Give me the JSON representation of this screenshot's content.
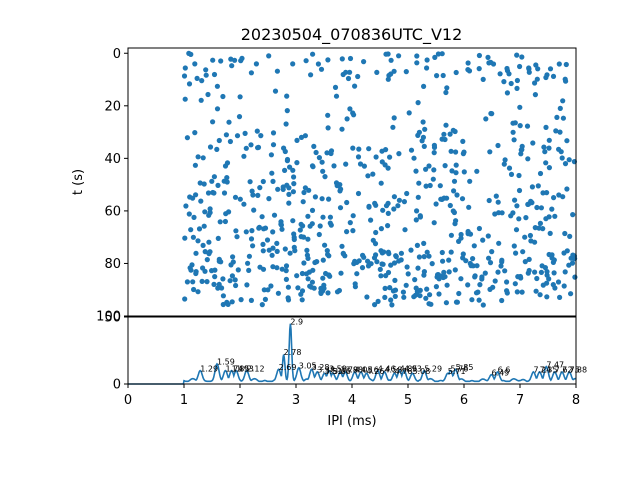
{
  "chart_data": [
    {
      "type": "scatter",
      "title": "20230504_070836UTC_V12",
      "ylabel": "t (s)",
      "xlim": [
        0,
        8
      ],
      "ylim": [
        100,
        -2
      ],
      "y_inverted": true,
      "yticks": [
        "0",
        "20",
        "40",
        "60",
        "80",
        "100"
      ],
      "point_color": "#1f77b4",
      "grid": false
    },
    {
      "type": "line",
      "xlabel": "IPI (ms)",
      "xlim": [
        0,
        8
      ],
      "ylim": [
        0,
        50
      ],
      "xticks": [
        "0",
        "1",
        "2",
        "3",
        "4",
        "5",
        "6",
        "7",
        "8"
      ],
      "yticks": [
        "0",
        "50"
      ],
      "line_color": "#1f77b4",
      "grid": false,
      "peaks": [
        {
          "x": 1.29,
          "y": 8,
          "label": "1.29"
        },
        {
          "x": 1.59,
          "y": 13,
          "label": "1.59"
        },
        {
          "x": 1.74,
          "y": 8,
          "label": "1.74"
        },
        {
          "x": 1.85,
          "y": 8,
          "label": "1.85"
        },
        {
          "x": 1.93,
          "y": 8,
          "label": "1.93"
        },
        {
          "x": 2.12,
          "y": 8,
          "label": "2.12"
        },
        {
          "x": 2.69,
          "y": 9,
          "label": "2.69"
        },
        {
          "x": 2.78,
          "y": 20,
          "label": "2.78"
        },
        {
          "x": 2.9,
          "y": 43,
          "label": "2.9"
        },
        {
          "x": 3.05,
          "y": 10,
          "label": "3.05"
        },
        {
          "x": 3.28,
          "y": 9,
          "label": "3.28"
        },
        {
          "x": 3.38,
          "y": 7,
          "label": "3.38"
        },
        {
          "x": 3.51,
          "y": 6,
          "label": "3.51"
        },
        {
          "x": 3.59,
          "y": 8,
          "label": "3.59"
        },
        {
          "x": 3.66,
          "y": 6,
          "label": "3.66"
        },
        {
          "x": 3.79,
          "y": 7,
          "label": "3.79"
        },
        {
          "x": 3.88,
          "y": 7,
          "label": "3.88"
        },
        {
          "x": 4.05,
          "y": 7,
          "label": "4.05"
        },
        {
          "x": 4.16,
          "y": 7,
          "label": "4.16"
        },
        {
          "x": 4.26,
          "y": 6,
          "label": "4.26"
        },
        {
          "x": 4.46,
          "y": 8,
          "label": "4.46"
        },
        {
          "x": 4.58,
          "y": 7,
          "label": "4.58"
        },
        {
          "x": 4.76,
          "y": 6,
          "label": "4.76"
        },
        {
          "x": 4.85,
          "y": 8,
          "label": "4.85"
        },
        {
          "x": 4.93,
          "y": 8,
          "label": "4.93"
        },
        {
          "x": 5.08,
          "y": 6,
          "label": "5.08"
        },
        {
          "x": 5.29,
          "y": 8,
          "label": "5.29"
        },
        {
          "x": 5.71,
          "y": 6,
          "label": "5.71"
        },
        {
          "x": 5.76,
          "y": 8,
          "label": "5.76"
        },
        {
          "x": 5.85,
          "y": 9,
          "label": "5.85"
        },
        {
          "x": 6.49,
          "y": 5,
          "label": "6.49"
        },
        {
          "x": 6.6,
          "y": 7,
          "label": "6.6"
        },
        {
          "x": 7.24,
          "y": 7,
          "label": "7.24"
        },
        {
          "x": 7.35,
          "y": 7,
          "label": "7.35"
        },
        {
          "x": 7.47,
          "y": 11,
          "label": "7.47"
        },
        {
          "x": 7.62,
          "y": 7,
          "label": "7.62"
        },
        {
          "x": 7.75,
          "y": 7,
          "label": "7.75"
        },
        {
          "x": 7.88,
          "y": 7,
          "label": "7.88"
        }
      ]
    }
  ]
}
